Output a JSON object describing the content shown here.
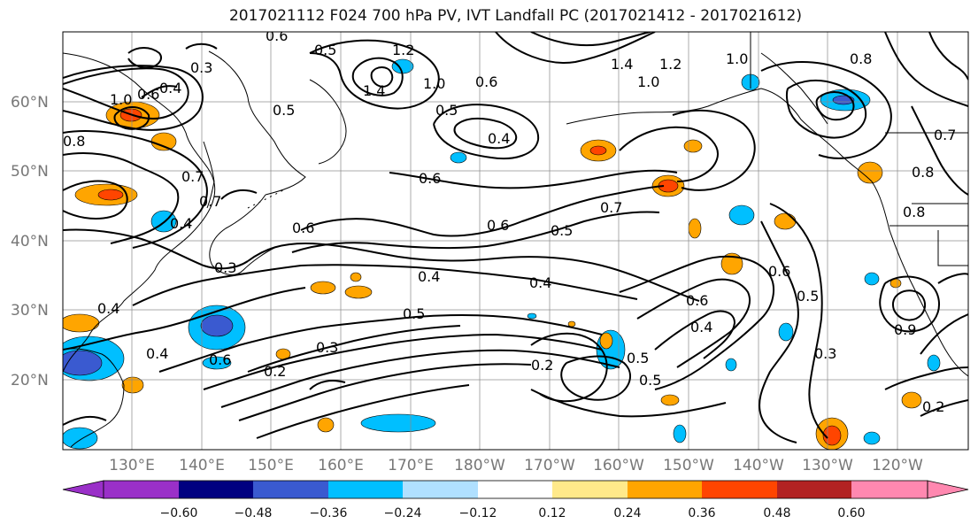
{
  "title": "2017021112 F024 700 hPa PV, IVT Landfall PC (2017021412 - 2017021612)",
  "lat_labels": [
    "60°N",
    "50°N",
    "40°N",
    "30°N",
    "20°N"
  ],
  "lon_labels": [
    "130°E",
    "140°E",
    "150°E",
    "160°E",
    "170°E",
    "180°W",
    "170°W",
    "160°W",
    "150°W",
    "140°W",
    "130°W",
    "120°W"
  ],
  "colorbar": {
    "ticks": [
      "−0.60",
      "−0.48",
      "−0.36",
      "−0.24",
      "−0.12",
      "0.12",
      "0.24",
      "0.36",
      "0.48",
      "0.60"
    ],
    "colors": [
      "#9a30c8",
      "#000080",
      "#3a5ad0",
      "#00bfff",
      "#b0e0ff",
      "#ffffff",
      "#ffe98a",
      "#ffa500",
      "#ff4500",
      "#b22222",
      "#ff88b0",
      "#ff88b0"
    ]
  },
  "contour_labels": [
    "0.6",
    "0.3",
    "0.5",
    "1.2",
    "1.4",
    "1.0",
    "0.6",
    "1.4",
    "1.0",
    "1.2",
    "1.0",
    "0.8",
    "0.4",
    "1.0",
    "0.6",
    "0.5",
    "0.5",
    "0.4",
    "0.7",
    "0.8",
    "0.7",
    "0.6",
    "0.4",
    "0.6",
    "0.6",
    "0.5",
    "0.7",
    "0.4",
    "0.3",
    "0.4",
    "0.4",
    "0.5",
    "0.3",
    "0.4",
    "0.2",
    "0.6",
    "0.6",
    "0.4",
    "0.5",
    "0.5",
    "0.6",
    "0.5",
    "0.3",
    "0.2",
    "0.9",
    "0.2",
    "0.7",
    "0.8",
    "0.8"
  ]
}
